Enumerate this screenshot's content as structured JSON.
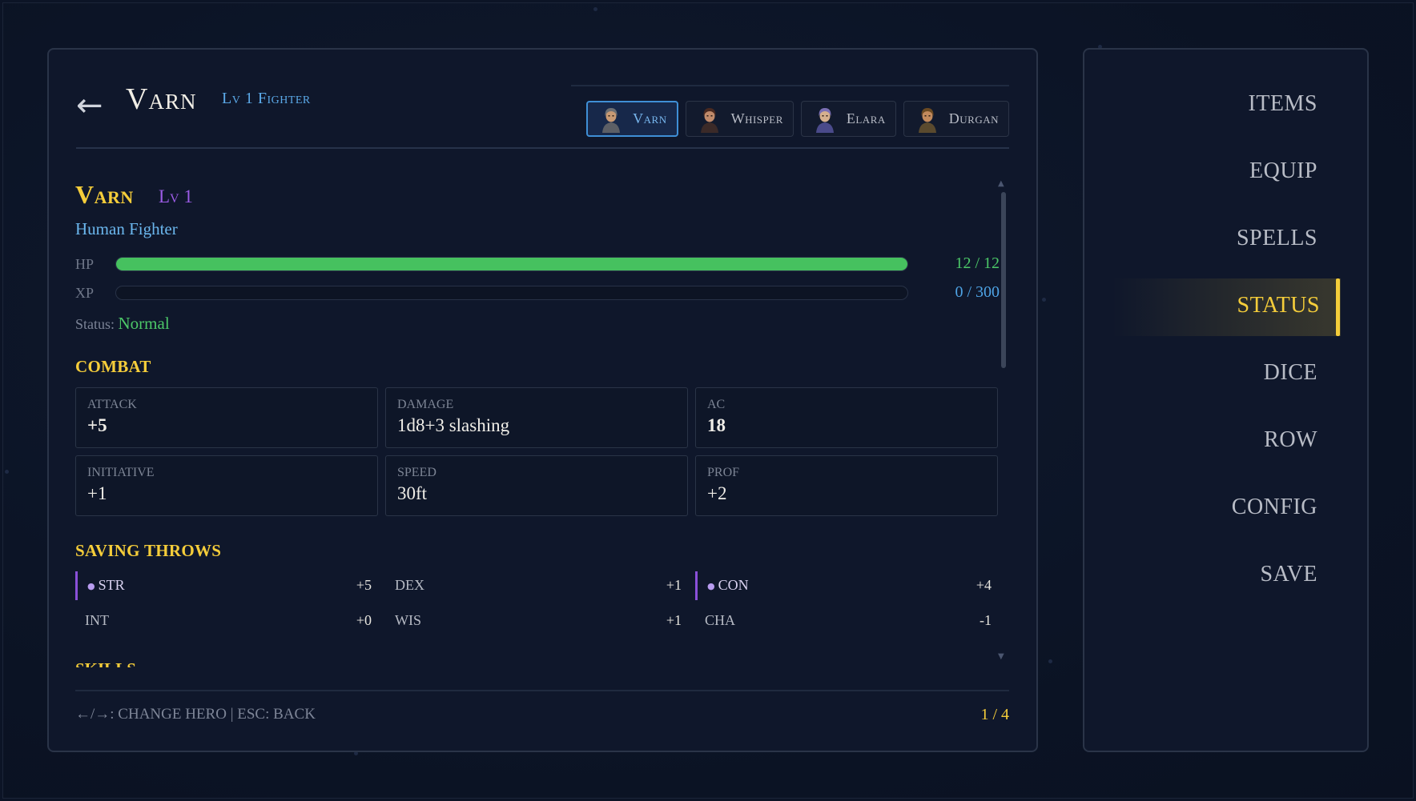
{
  "header": {
    "back_glyph": "←",
    "hero_name": "Varn",
    "hero_class": "Lv 1 Fighter"
  },
  "party_tabs": [
    {
      "name": "Varn",
      "active": true,
      "hair": "#6c6f73",
      "skin": "#c89a74",
      "cloth": "#5c5f66"
    },
    {
      "name": "Whisper",
      "active": false,
      "hair": "#4a2a20",
      "skin": "#c08a6a",
      "cloth": "#3b2a28"
    },
    {
      "name": "Elara",
      "active": false,
      "hair": "#7b6fb4",
      "skin": "#d6b08e",
      "cloth": "#4a4a8a"
    },
    {
      "name": "Durgan",
      "active": false,
      "hair": "#6b4a22",
      "skin": "#c28a5c",
      "cloth": "#5a4a2e"
    }
  ],
  "character": {
    "name": "Varn",
    "level": "Lv 1",
    "race_class": "Human Fighter",
    "hp": {
      "label": "HP",
      "text": "12 / 12",
      "fraction": 1.0
    },
    "xp": {
      "label": "XP",
      "text": "0 / 300",
      "fraction": 0.0
    },
    "status_label": "Status:",
    "status_value": "Normal"
  },
  "combat": {
    "title": "COMBAT",
    "stats": [
      {
        "label": "ATTACK",
        "value": "+5",
        "bold": true
      },
      {
        "label": "DAMAGE",
        "value": "1d8+3 slashing",
        "bold": false
      },
      {
        "label": "AC",
        "value": "18",
        "bold": true
      },
      {
        "label": "INITIATIVE",
        "value": "+1",
        "bold": false
      },
      {
        "label": "SPEED",
        "value": "30ft",
        "bold": false
      },
      {
        "label": "PROF",
        "value": "+2",
        "bold": false
      }
    ]
  },
  "saving_throws": {
    "title": "SAVING THROWS",
    "items": [
      {
        "name": "STR",
        "mod": "+5",
        "proficient": true
      },
      {
        "name": "DEX",
        "mod": "+1",
        "proficient": false
      },
      {
        "name": "CON",
        "mod": "+4",
        "proficient": true
      },
      {
        "name": "INT",
        "mod": "+0",
        "proficient": false
      },
      {
        "name": "WIS",
        "mod": "+1",
        "proficient": false
      },
      {
        "name": "CHA",
        "mod": "-1",
        "proficient": false
      }
    ]
  },
  "skills_title": "SKILLS",
  "footer": {
    "hint": "←/→: CHANGE HERO | ESC: BACK",
    "page": "1 / 4"
  },
  "menu": {
    "items": [
      "ITEMS",
      "EQUIP",
      "SPELLS",
      "STATUS",
      "DICE",
      "ROW",
      "CONFIG",
      "SAVE"
    ],
    "active": "STATUS"
  },
  "colors": {
    "accent_gold": "#f5cd3a",
    "hp_green": "#46c15f",
    "info_blue": "#5ba9e8",
    "level_purple": "#9c5ce6"
  }
}
